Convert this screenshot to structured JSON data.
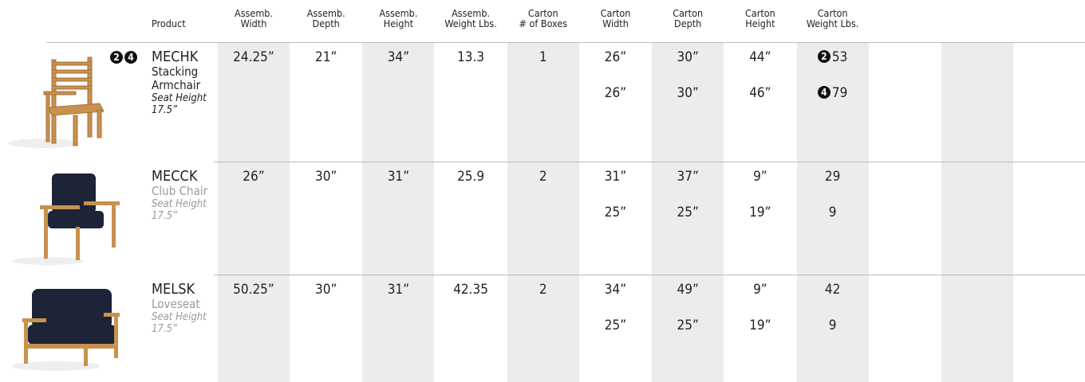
{
  "header": {
    "columns": [
      [
        "Product"
      ],
      [
        "Assemb.",
        "Width"
      ],
      [
        "Assemb.",
        "Depth"
      ],
      [
        "Assemb.",
        "Height"
      ],
      [
        "Assemb.",
        "Weight Lbs."
      ],
      [
        "Carton",
        "# of Boxes"
      ],
      [
        "Carton",
        "Width"
      ],
      [
        "Carton",
        "Depth"
      ],
      [
        "Carton",
        "Height"
      ],
      [
        "Carton",
        "Weight Lbs."
      ]
    ]
  },
  "rows": [
    {
      "badges": [
        "2",
        "4"
      ],
      "code": "MECHK",
      "name": "Stacking Armchair",
      "seat_height": "Seat Height 17.5”",
      "cells": [
        [
          "24.25”"
        ],
        [
          "21”"
        ],
        [
          "34”"
        ],
        [
          "13.3"
        ],
        [
          "1"
        ],
        [
          "26”",
          "26”"
        ],
        [
          "30”",
          "30”"
        ],
        [
          "44”",
          "46”"
        ],
        [
          {
            "badge": "2",
            "text": "53"
          },
          {
            "badge": "4",
            "text": "79"
          }
        ]
      ]
    },
    {
      "code": "MECCK",
      "name": "Club Chair",
      "seat_height": "Seat Height 17.5”",
      "cells": [
        [
          "26”"
        ],
        [
          "30”"
        ],
        [
          "31”"
        ],
        [
          "25.9"
        ],
        [
          "2"
        ],
        [
          "31”",
          "25”"
        ],
        [
          "37”",
          "25”"
        ],
        [
          "9”",
          "19”"
        ],
        [
          "29",
          "9"
        ]
      ]
    },
    {
      "code": "MELSK",
      "name": "Loveseat",
      "seat_height": "Seat Height 17.5”",
      "cells": [
        [
          "50.25”"
        ],
        [
          "30”"
        ],
        [
          "31”"
        ],
        [
          "42.35"
        ],
        [
          "2"
        ],
        [
          "34”",
          "25”"
        ],
        [
          "49”",
          "25”"
        ],
        [
          "9”",
          "19”"
        ],
        [
          "42",
          "9"
        ]
      ]
    }
  ]
}
